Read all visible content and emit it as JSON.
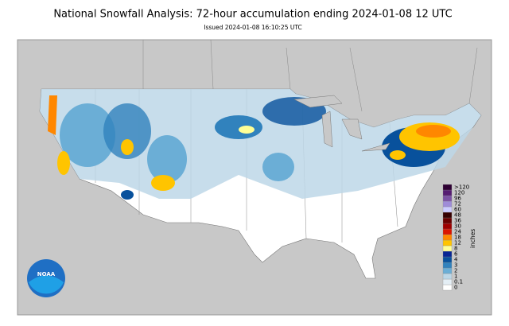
{
  "header": {
    "title": "National Snowfall Analysis: 72-hour accumulation ending 2024-01-08 12 UTC",
    "subtitle": "Issued 2024-01-08 16:10:25 UTC"
  },
  "legend": {
    "unit": "inches",
    "items": [
      {
        "label": "0",
        "color": "#ffffff"
      },
      {
        "label": "0.1",
        "color": "#e4eef5"
      },
      {
        "label": "1",
        "color": "#bdd7e7"
      },
      {
        "label": "2",
        "color": "#6baed6"
      },
      {
        "label": "3",
        "color": "#3182bd"
      },
      {
        "label": "4",
        "color": "#08519c"
      },
      {
        "label": "6",
        "color": "#082694"
      },
      {
        "label": "8",
        "color": "#ffff96"
      },
      {
        "label": "12",
        "color": "#ffc400"
      },
      {
        "label": "18",
        "color": "#ff8700"
      },
      {
        "label": "24",
        "color": "#db1400"
      },
      {
        "label": "30",
        "color": "#9e0000"
      },
      {
        "label": "36",
        "color": "#690000"
      },
      {
        "label": "48",
        "color": "#360000"
      },
      {
        "label": "60",
        "color": "#ccccff"
      },
      {
        "label": "72",
        "color": "#9f8cd8"
      },
      {
        "label": "96",
        "color": "#7c52a5"
      },
      {
        "label": "120",
        "color": "#561c72"
      },
      {
        "label": ">120",
        "color": "#2e0033"
      }
    ]
  },
  "logo": {
    "text": "NOAA"
  }
}
